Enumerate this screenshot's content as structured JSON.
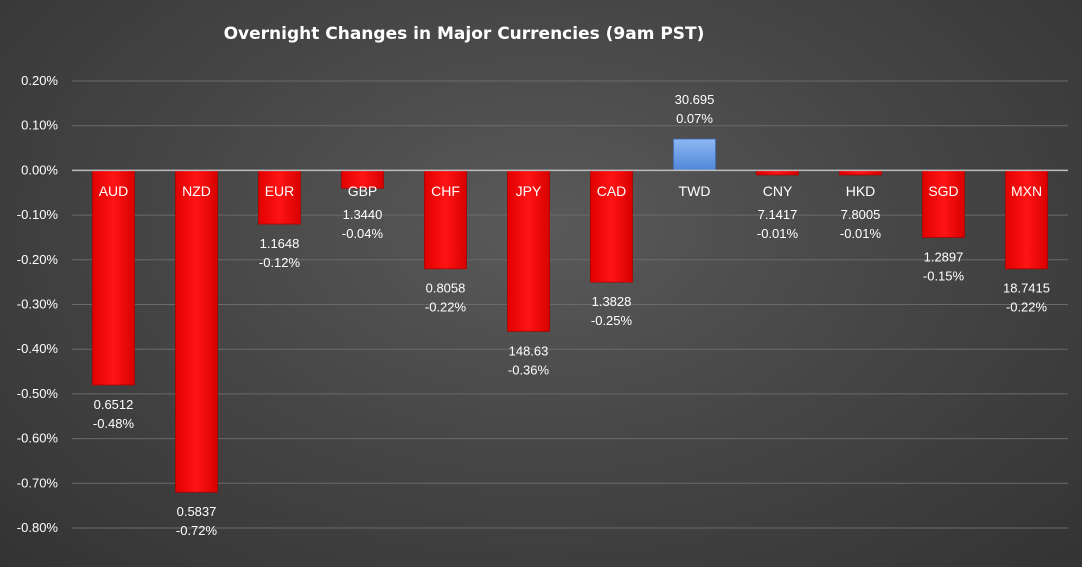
{
  "chart_data": {
    "type": "bar",
    "title": "Overnight Changes in Major Currencies (9am PST)",
    "xlabel": "",
    "ylabel": "",
    "ylim": [
      -0.8,
      0.2
    ],
    "y_tick_step": 0.1,
    "y_tick_format": "percent-2dp",
    "grid": true,
    "legend": "none",
    "categories": [
      "AUD",
      "NZD",
      "EUR",
      "GBP",
      "CHF",
      "JPY",
      "CAD",
      "TWD",
      "CNY",
      "HKD",
      "SGD",
      "MXN"
    ],
    "values": [
      -0.48,
      -0.72,
      -0.12,
      -0.04,
      -0.22,
      -0.36,
      -0.25,
      0.07,
      -0.01,
      -0.01,
      -0.15,
      -0.22
    ],
    "rates": [
      "0.6512",
      "0.5837",
      "1.1648",
      "1.3440",
      "0.8058",
      "148.63",
      "1.3828",
      "30.695",
      "7.1417",
      "7.8005",
      "1.2897",
      "18.7415"
    ],
    "value_labels": [
      "-0.48%",
      "-0.72%",
      "-0.12%",
      "-0.04%",
      "-0.22%",
      "-0.36%",
      "-0.25%",
      "0.07%",
      "-0.01%",
      "-0.01%",
      "-0.15%",
      "-0.22%"
    ],
    "colors": {
      "negative": "#ff0000",
      "positive": "#6aa0e8"
    }
  }
}
